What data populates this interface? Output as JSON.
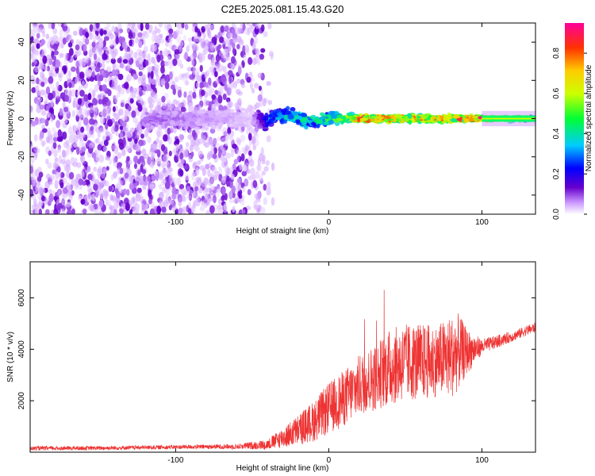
{
  "title": "C2E5.2025.081.15.43.G20",
  "colorbar": {
    "label": "Normalized spectral amplitude",
    "ticks": [
      "0.0",
      "0.2",
      "0.4",
      "0.6",
      "0.8"
    ],
    "tick_values": [
      0.0,
      0.2,
      0.4,
      0.6,
      0.8
    ],
    "range": [
      0.0,
      0.95
    ]
  },
  "chart_data": [
    {
      "type": "heatmap",
      "xlabel": "Height of straight line (km)",
      "ylabel": "Frequency (Hz)",
      "xlim": [
        -195,
        135
      ],
      "ylim": [
        -50,
        50
      ],
      "xticks": [
        -100,
        0,
        100
      ],
      "yticks": [
        -40,
        -20,
        0,
        20,
        40
      ],
      "colormap": "rainbow (white-violet-blue-cyan-green-yellow-orange-red-magenta)",
      "description_points": [
        {
          "x": -190,
          "f_spread": 50,
          "amp": 0.1
        },
        {
          "x": -100,
          "f_spread": 50,
          "amp": 0.08
        },
        {
          "x": -50,
          "f_spread": 50,
          "amp": 0.04
        },
        {
          "x": -40,
          "f_spread": 8,
          "amp": 0.3
        },
        {
          "x": -20,
          "f_spread": 10,
          "amp": 0.4
        },
        {
          "x": 0,
          "f_spread": 8,
          "amp": 0.45
        },
        {
          "x": 20,
          "f_spread": 5,
          "amp": 0.8
        },
        {
          "x": 50,
          "f_spread": 5,
          "amp": 0.75
        },
        {
          "x": 80,
          "f_spread": 5,
          "amp": 0.7
        },
        {
          "x": 100,
          "f_spread": 3,
          "amp": 0.9
        },
        {
          "x": 130,
          "f_spread": 3,
          "amp": 0.45
        }
      ]
    },
    {
      "type": "line",
      "color": "#ee3333",
      "xlabel": "Height of straight line (km)",
      "ylabel": "SNR (10 * v/v)",
      "xlim": [
        -195,
        135
      ],
      "ylim": [
        0,
        7400
      ],
      "xticks": [
        -100,
        0,
        100
      ],
      "yticks": [
        2000,
        4000,
        6000
      ],
      "x": [
        -195,
        -150,
        -100,
        -60,
        -40,
        -25,
        -10,
        0,
        10,
        20,
        30,
        40,
        50,
        60,
        70,
        80,
        85,
        90,
        100,
        110,
        120,
        130,
        135
      ],
      "y": [
        150,
        160,
        200,
        220,
        300,
        700,
        1200,
        1700,
        2100,
        2600,
        2900,
        3300,
        3500,
        3500,
        3550,
        3700,
        3900,
        3900,
        4100,
        4300,
        4500,
        4750,
        4850
      ],
      "y_spread": [
        80,
        80,
        80,
        100,
        200,
        500,
        800,
        1000,
        1100,
        1200,
        1300,
        1500,
        1500,
        1500,
        1400,
        1600,
        1500,
        900,
        300,
        250,
        200,
        200,
        200
      ]
    }
  ]
}
